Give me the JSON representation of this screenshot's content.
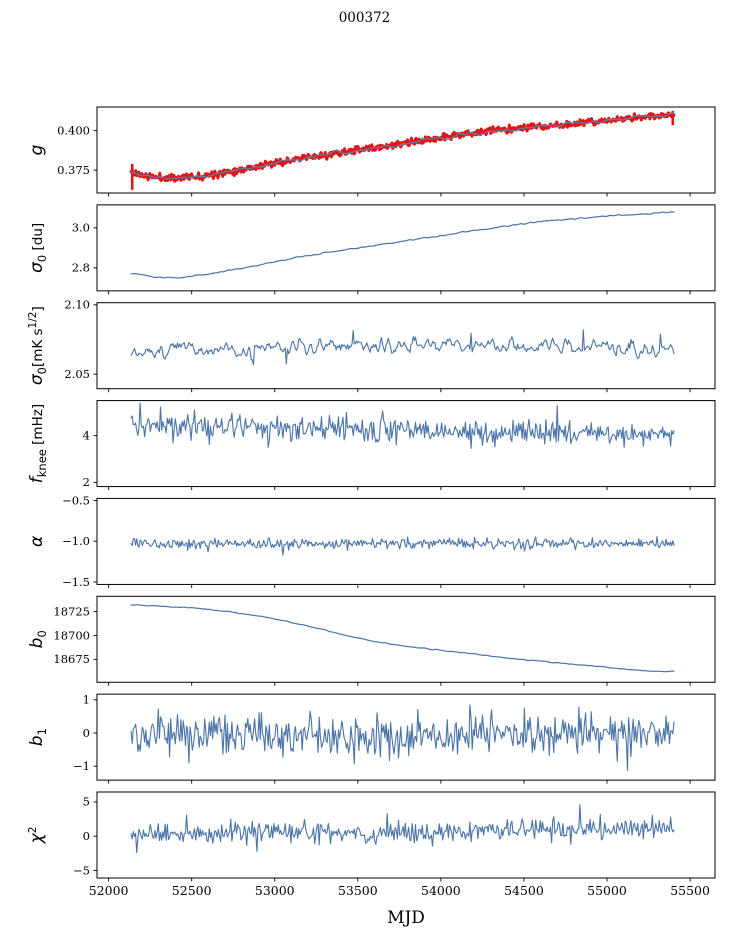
{
  "title": "000372",
  "xlabel": "MJD",
  "colors": {
    "blue": "#4a74a8",
    "panel1_blue": "#5e7ca3",
    "red": "#e51313",
    "axis": "#000000",
    "text": "#000000",
    "background": "#ffffff"
  },
  "chart_data": {
    "type": "line",
    "x_axis": {
      "min": 51930,
      "max": 55650,
      "data_start": 52135,
      "data_end": 55403,
      "ticks": [
        52000,
        52500,
        53000,
        53500,
        54000,
        54500,
        55000,
        55500
      ],
      "tick_labels": [
        "52000",
        "52500",
        "53000",
        "53500",
        "54000",
        "54500",
        "55000",
        "55500"
      ]
    },
    "panels": [
      {
        "id": "g",
        "label": [
          {
            "t": "g",
            "it": 1
          }
        ],
        "ylim": [
          0.3605,
          0.415
        ],
        "yticks": [
          {
            "v": 0.4,
            "label": "0.400"
          },
          {
            "v": 0.375,
            "label": "0.375"
          }
        ],
        "series": [
          {
            "name": "gain-errorbars",
            "color_key": "red",
            "width": 3,
            "n": 700,
            "seed": 11,
            "noise": 0.0011,
            "smooth": 1,
            "bs": 9,
            "anchors": [
              [
                52135,
                0.374
              ],
              [
                52220,
                0.3712
              ],
              [
                52350,
                0.3699
              ],
              [
                52550,
                0.3712
              ],
              [
                52800,
                0.3755
              ],
              [
                53050,
                0.3805
              ],
              [
                53300,
                0.3845
              ],
              [
                53550,
                0.3885
              ],
              [
                53800,
                0.392
              ],
              [
                54050,
                0.3965
              ],
              [
                54300,
                0.4
              ],
              [
                54550,
                0.4022
              ],
              [
                54800,
                0.4042
              ],
              [
                55050,
                0.4068
              ],
              [
                55250,
                0.409
              ],
              [
                55403,
                0.4105
              ]
            ],
            "vlines": [
              [
                52142,
                0.3625,
                0.379
              ],
              [
                55396,
                0.4035,
                0.4125
              ]
            ]
          },
          {
            "name": "gain-model",
            "color_key": "panel1_blue",
            "width": 1.4,
            "n": 330,
            "seed": 5,
            "noise": 0.0007,
            "smooth": 5,
            "bs": 9,
            "anchors": [
              [
                52135,
                0.374
              ],
              [
                52220,
                0.3712
              ],
              [
                52350,
                0.3699
              ],
              [
                52550,
                0.3712
              ],
              [
                52800,
                0.3755
              ],
              [
                53050,
                0.3805
              ],
              [
                53300,
                0.3845
              ],
              [
                53550,
                0.3885
              ],
              [
                53800,
                0.392
              ],
              [
                54050,
                0.3965
              ],
              [
                54300,
                0.4
              ],
              [
                54550,
                0.4022
              ],
              [
                54800,
                0.4042
              ],
              [
                55050,
                0.4068
              ],
              [
                55250,
                0.409
              ],
              [
                55403,
                0.4105
              ]
            ]
          }
        ]
      },
      {
        "id": "sigma0-du",
        "label": [
          {
            "t": "σ",
            "it": 1
          },
          {
            "t": "0",
            "sub": 1
          },
          {
            "t": " [du]"
          }
        ],
        "ylim": [
          2.685,
          3.115
        ],
        "yticks": [
          {
            "v": 3.0,
            "label": "3.0"
          },
          {
            "v": 2.8,
            "label": "2.8"
          }
        ],
        "series": [
          {
            "name": "sigma0-du-line",
            "color_key": "blue",
            "width": 1.2,
            "n": 330,
            "seed": 23,
            "noise": 0.002,
            "smooth": 2,
            "bs": 9,
            "anchors": [
              [
                52135,
                2.777
              ],
              [
                52240,
                2.756
              ],
              [
                52400,
                2.749
              ],
              [
                52600,
                2.769
              ],
              [
                52850,
                2.806
              ],
              [
                53100,
                2.846
              ],
              [
                53350,
                2.882
              ],
              [
                53600,
                2.912
              ],
              [
                53900,
                2.948
              ],
              [
                54200,
                2.986
              ],
              [
                54500,
                3.022
              ],
              [
                54800,
                3.046
              ],
              [
                55100,
                3.064
              ],
              [
                55403,
                3.08
              ]
            ]
          }
        ]
      },
      {
        "id": "sigma0-mk",
        "label": [
          {
            "t": "σ",
            "it": 1
          },
          {
            "t": "0",
            "sub": 1
          },
          {
            "t": "[mK s"
          },
          {
            "t": "1/2",
            "sup": 1
          },
          {
            "t": "]"
          }
        ],
        "ylim": [
          2.0395,
          2.1015
        ],
        "yticks": [
          {
            "v": 2.1,
            "label": "2.10"
          },
          {
            "v": 2.05,
            "label": "2.05"
          }
        ],
        "series": [
          {
            "name": "sigma0-mk-line",
            "color_key": "blue",
            "width": 1.1,
            "n": 480,
            "seed": 37,
            "noise": 0.0035,
            "smooth": 2,
            "bs": 5,
            "anchors": [
              [
                52135,
                2.0625
              ],
              [
                52300,
                2.0685
              ],
              [
                52550,
                2.0692
              ],
              [
                52800,
                2.0638
              ],
              [
                52950,
                2.068
              ],
              [
                53200,
                2.0698
              ],
              [
                53500,
                2.0712
              ],
              [
                53800,
                2.0702
              ],
              [
                54100,
                2.0712
              ],
              [
                54400,
                2.0694
              ],
              [
                54700,
                2.0704
              ],
              [
                55000,
                2.0704
              ],
              [
                55200,
                2.0694
              ],
              [
                55403,
                2.068
              ]
            ],
            "spikes": [
              [
                53470,
                2.0815
              ],
              [
                54860,
                2.082
              ],
              [
                52870,
                2.0568
              ],
              [
                53070,
                2.0575
              ],
              [
                54180,
                2.0795
              ],
              [
                55320,
                2.0788
              ]
            ]
          }
        ]
      },
      {
        "id": "fknee",
        "label": [
          {
            "t": "f",
            "it": 1
          },
          {
            "t": "knee",
            "sub": 1
          },
          {
            "t": " [mHz]"
          }
        ],
        "ylim": [
          1.82,
          5.5
        ],
        "yticks": [
          {
            "v": 4,
            "label": "4"
          },
          {
            "v": 2,
            "label": "2"
          }
        ],
        "series": [
          {
            "name": "fknee-line",
            "color_key": "blue",
            "width": 1.1,
            "n": 480,
            "seed": 41,
            "noise": 0.27,
            "smooth": 1,
            "bs": 5,
            "anchors": [
              [
                52135,
                4.52
              ],
              [
                52250,
                4.44
              ],
              [
                52450,
                4.38
              ],
              [
                52700,
                4.36
              ],
              [
                53000,
                4.32
              ],
              [
                53300,
                4.28
              ],
              [
                53600,
                4.24
              ],
              [
                53900,
                4.2
              ],
              [
                54200,
                4.17
              ],
              [
                54500,
                4.14
              ],
              [
                54800,
                4.12
              ],
              [
                55100,
                4.08
              ],
              [
                55403,
                4.02
              ]
            ],
            "spikes": [
              [
                52190,
                5.4
              ],
              [
                52310,
                5.22
              ],
              [
                52520,
                5.1
              ],
              [
                52960,
                3.5
              ],
              [
                53430,
                5.0
              ],
              [
                53650,
                5.05
              ],
              [
                54180,
                3.45
              ],
              [
                54700,
                5.28
              ],
              [
                55100,
                3.5
              ],
              [
                55385,
                3.55
              ]
            ]
          }
        ]
      },
      {
        "id": "alpha",
        "label": [
          {
            "t": "α",
            "it": 1
          }
        ],
        "ylim": [
          -1.53,
          -0.475
        ],
        "yticks": [
          {
            "v": -0.5,
            "label": "−0.5"
          },
          {
            "v": -1.0,
            "label": "−1.0"
          },
          {
            "v": -1.5,
            "label": "−1.5"
          }
        ],
        "series": [
          {
            "name": "alpha-line",
            "color_key": "blue",
            "width": 1.1,
            "n": 480,
            "seed": 53,
            "noise": 0.03,
            "smooth": 1,
            "bs": 5,
            "anchors": [
              [
                52135,
                -1.025
              ],
              [
                53000,
                -1.032
              ],
              [
                54000,
                -1.028
              ],
              [
                55403,
                -1.026
              ]
            ],
            "spikes": [
              [
                52600,
                -1.13
              ],
              [
                53050,
                -1.17
              ],
              [
                54500,
                -1.12
              ],
              [
                55300,
                -0.945
              ],
              [
                53800,
                -0.95
              ]
            ]
          }
        ]
      },
      {
        "id": "b0",
        "label": [
          {
            "t": "b",
            "it": 1
          },
          {
            "t": "0",
            "sub": 1
          }
        ],
        "ylim": [
          18651,
          18741
        ],
        "yticks": [
          {
            "v": 18725,
            "label": "18725"
          },
          {
            "v": 18700,
            "label": "18700"
          },
          {
            "v": 18675,
            "label": "18675"
          }
        ],
        "series": [
          {
            "name": "b0-line",
            "color_key": "blue",
            "width": 1.2,
            "n": 330,
            "seed": 61,
            "noise": 0.3,
            "smooth": 2,
            "bs": 9,
            "anchors": [
              [
                52135,
                18732
              ],
              [
                52450,
                18729.5
              ],
              [
                52700,
                18725.5
              ],
              [
                52950,
                18719
              ],
              [
                53200,
                18710
              ],
              [
                53450,
                18699
              ],
              [
                53650,
                18692
              ],
              [
                53900,
                18686.5
              ],
              [
                54150,
                18681.5
              ],
              [
                54450,
                18675.5
              ],
              [
                54750,
                18670.5
              ],
              [
                55000,
                18666.5
              ],
              [
                55200,
                18663.5
              ],
              [
                55330,
                18662
              ],
              [
                55403,
                18662.8
              ]
            ]
          }
        ]
      },
      {
        "id": "b1",
        "label": [
          {
            "t": "b",
            "it": 1
          },
          {
            "t": "1",
            "sub": 1
          }
        ],
        "ylim": [
          -1.42,
          1.17
        ],
        "yticks": [
          {
            "v": 1,
            "label": "1"
          },
          {
            "v": 0,
            "label": "0"
          },
          {
            "v": -1,
            "label": "−1"
          }
        ],
        "series": [
          {
            "name": "b1-line",
            "color_key": "blue",
            "width": 1.1,
            "n": 480,
            "seed": 71,
            "noise": 0.3,
            "smooth": 1,
            "bs": 5,
            "anchors": [
              [
                52135,
                -0.06
              ],
              [
                53500,
                -0.05
              ],
              [
                54500,
                -0.02
              ],
              [
                55403,
                0.0
              ]
            ],
            "spikes": [
              [
                52300,
                0.72
              ],
              [
                52480,
                -0.9
              ],
              [
                53480,
                -0.93
              ],
              [
                54175,
                0.85
              ],
              [
                54830,
                0.78
              ],
              [
                55060,
                -0.86
              ],
              [
                55122,
                -1.13
              ]
            ]
          }
        ]
      },
      {
        "id": "chi2",
        "label": [
          {
            "t": "χ",
            "it": 1
          },
          {
            "t": "2",
            "sup": 1
          }
        ],
        "ylim": [
          -6.1,
          6.45
        ],
        "yticks": [
          {
            "v": 5,
            "label": "5"
          },
          {
            "v": 0,
            "label": "0"
          },
          {
            "v": -5,
            "label": "−5"
          }
        ],
        "series": [
          {
            "name": "chi2-line",
            "color_key": "blue",
            "width": 1.1,
            "n": 480,
            "seed": 83,
            "noise": 0.78,
            "smooth": 1,
            "bs": 5,
            "anchors": [
              [
                52135,
                0.15
              ],
              [
                52800,
                0.45
              ],
              [
                53500,
                0.6
              ],
              [
                54200,
                0.7
              ],
              [
                54800,
                0.95
              ],
              [
                55403,
                1.2
              ]
            ],
            "spikes": [
              [
                52170,
                -2.4
              ],
              [
                52470,
                3.1
              ],
              [
                52890,
                -2.2
              ],
              [
                53680,
                3.3
              ],
              [
                54840,
                4.6
              ],
              [
                54960,
                3.2
              ],
              [
                55380,
                2.8
              ]
            ]
          }
        ]
      }
    ]
  }
}
